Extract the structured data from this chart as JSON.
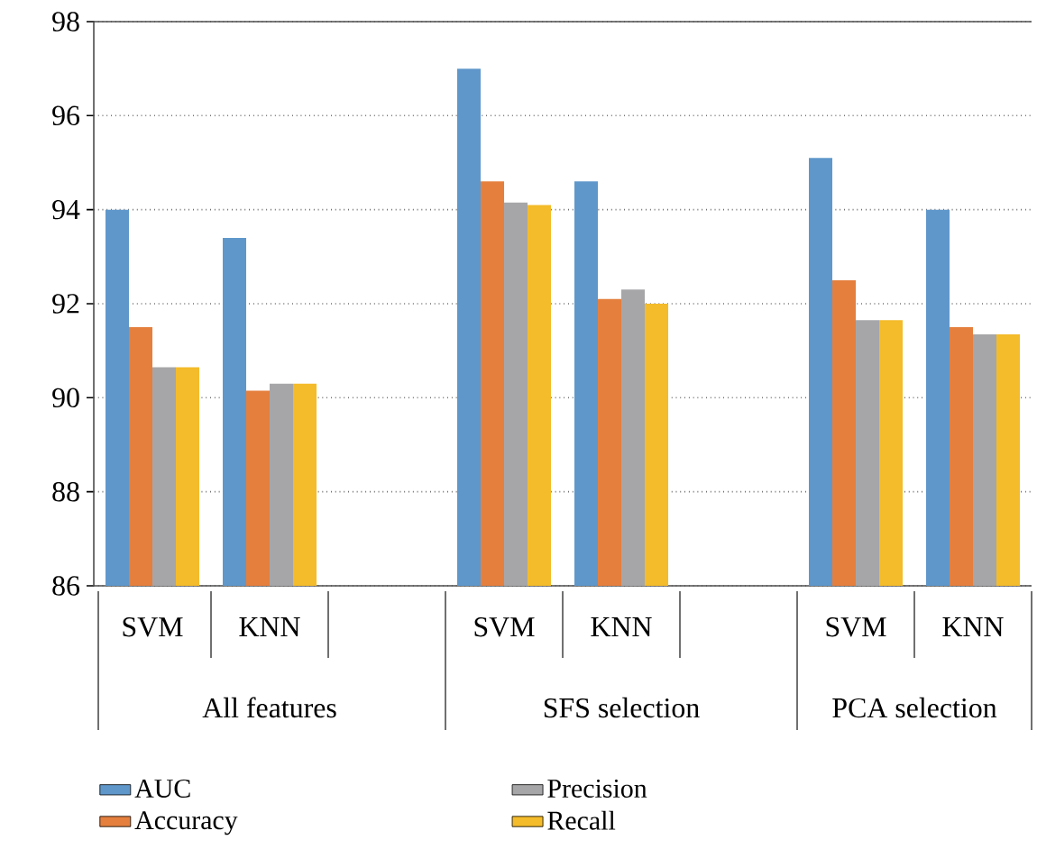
{
  "chart_data": {
    "type": "bar",
    "categories": [
      "SVM",
      "KNN",
      null,
      "SVM",
      "KNN",
      null,
      "SVM",
      "KNN"
    ],
    "series": [
      {
        "name": "AUC",
        "color": "#5f97cb",
        "values": [
          94.0,
          93.4,
          null,
          97.0,
          94.6,
          null,
          95.1,
          94.0
        ]
      },
      {
        "name": "Accuracy",
        "color": "#e47f3e",
        "values": [
          91.5,
          90.15,
          null,
          94.6,
          92.1,
          null,
          92.5,
          91.5
        ]
      },
      {
        "name": "Precision",
        "color": "#a6a6a8",
        "values": [
          90.65,
          90.3,
          null,
          94.15,
          92.3,
          null,
          91.65,
          91.35
        ]
      },
      {
        "name": "Recall",
        "color": "#f4bb2a",
        "values": [
          90.65,
          90.3,
          null,
          94.1,
          92.0,
          null,
          91.65,
          91.35
        ]
      }
    ],
    "annotations": [
      "All features",
      "SFS selection",
      "PCA selection"
    ],
    "ylim": [
      86,
      98
    ],
    "yticks": [
      86,
      88,
      90,
      92,
      94,
      96,
      98
    ],
    "grid": "y",
    "legend": "bottom"
  }
}
